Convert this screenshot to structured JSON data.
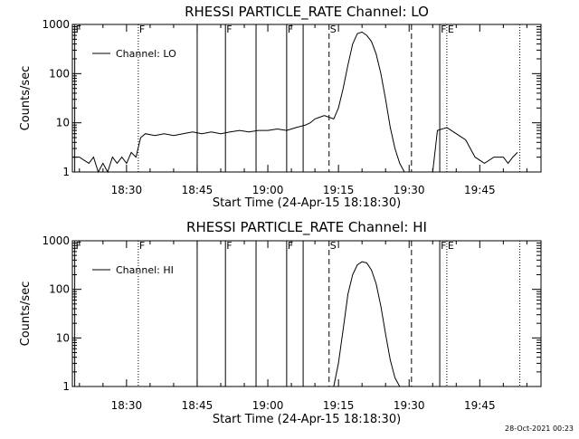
{
  "footer": "28-Oct-2021 00:23",
  "chart_data": [
    {
      "type": "line",
      "title": "RHESSI PARTICLE_RATE Channel: LO",
      "xlabel": "Start Time (24-Apr-15 18:18:30)",
      "ylabel": "Counts/sec",
      "y_scale": "log",
      "ylim": [
        1,
        1000
      ],
      "y_ticks": [
        1,
        10,
        100,
        1000
      ],
      "y_tick_labels": [
        "1",
        "10",
        "100",
        "1000"
      ],
      "xlim": [
        "18:18:30",
        "19:58:00"
      ],
      "x_ticks": [
        "18:30",
        "18:45",
        "19:00",
        "19:15",
        "19:30",
        "19:45"
      ],
      "legend": {
        "position": "top-left",
        "entries": [
          "Channel: LO"
        ]
      },
      "series": [
        {
          "name": "Channel: LO",
          "x": [
            "18:18:30",
            "18:20:00",
            "18:22:00",
            "18:23:00",
            "18:24:00",
            "18:25:00",
            "18:26:00",
            "18:27:00",
            "18:28:00",
            "18:29:00",
            "18:30:00",
            "18:31:00",
            "18:32:00",
            "18:33:00",
            "18:34:00",
            "18:36:00",
            "18:38:00",
            "18:40:00",
            "18:42:00",
            "18:44:00",
            "18:46:00",
            "18:48:00",
            "18:50:00",
            "18:52:00",
            "18:54:00",
            "18:56:00",
            "18:58:00",
            "19:00:00",
            "19:02:00",
            "19:04:00",
            "19:06:00",
            "19:08:00",
            "19:09:00",
            "19:10:00",
            "19:11:00",
            "19:12:00",
            "19:13:00",
            "19:14:00",
            "19:15:00",
            "19:16:00",
            "19:17:00",
            "19:18:00",
            "19:19:00",
            "19:20:00",
            "19:21:00",
            "19:22:00",
            "19:23:00",
            "19:24:00",
            "19:25:00",
            "19:26:00",
            "19:27:00",
            "19:28:00",
            "19:29:00",
            "19:30:00",
            "19:31:00",
            "19:32:00",
            "19:33:00",
            "19:35:00",
            "19:36:00",
            "19:38:00",
            "19:40:00",
            "19:42:00",
            "19:44:00",
            "19:46:00",
            "19:48:00",
            "19:50:00",
            "19:51:00",
            "19:52:00",
            "19:53:00"
          ],
          "y": [
            2,
            2,
            1.5,
            2,
            1,
            1.5,
            1,
            2,
            1.5,
            2,
            1.5,
            2.5,
            2,
            5,
            6,
            5.5,
            6,
            5.5,
            6,
            6.5,
            6,
            6.5,
            6,
            6.5,
            7,
            6.5,
            7,
            7,
            7.5,
            7,
            8,
            9,
            10,
            12,
            13,
            14,
            13,
            12,
            20,
            50,
            150,
            400,
            650,
            700,
            600,
            450,
            250,
            100,
            30,
            8,
            3,
            1.5,
            1,
            1,
            1,
            1,
            1,
            1,
            7,
            8,
            6,
            4.5,
            2,
            1.5,
            2,
            2,
            1.5,
            2,
            2.5
          ]
        }
      ],
      "annotations": [
        {
          "x": "18:19:00",
          "style": "solid",
          "label": "F"
        },
        {
          "x": "18:32:30",
          "style": "dotted",
          "label": ""
        },
        {
          "x": "18:32:30",
          "style": "none",
          "label": "F"
        },
        {
          "x": "18:45:00",
          "style": "solid",
          "label": ""
        },
        {
          "x": "18:51:00",
          "style": "solid",
          "label": "F"
        },
        {
          "x": "18:57:30",
          "style": "solid",
          "label": ""
        },
        {
          "x": "19:04:00",
          "style": "solid",
          "label": "F"
        },
        {
          "x": "19:07:30",
          "style": "solid",
          "label": ""
        },
        {
          "x": "19:13:00",
          "style": "dashed",
          "label": "S"
        },
        {
          "x": "19:30:30",
          "style": "dashed",
          "label": ""
        },
        {
          "x": "19:36:30",
          "style": "solid",
          "label": "F"
        },
        {
          "x": "19:38:00",
          "style": "dotted",
          "label": "E"
        },
        {
          "x": "19:53:30",
          "style": "dotted",
          "label": ""
        }
      ]
    },
    {
      "type": "line",
      "title": "RHESSI PARTICLE_RATE Channel: HI",
      "xlabel": "Start Time (24-Apr-15 18:18:30)",
      "ylabel": "Counts/sec",
      "y_scale": "log",
      "ylim": [
        1,
        1000
      ],
      "y_ticks": [
        1,
        10,
        100,
        1000
      ],
      "y_tick_labels": [
        "1",
        "10",
        "100",
        "1000"
      ],
      "xlim": [
        "18:18:30",
        "19:58:00"
      ],
      "x_ticks": [
        "18:30",
        "18:45",
        "19:00",
        "19:15",
        "19:30",
        "19:45"
      ],
      "legend": {
        "position": "top-left",
        "entries": [
          "Channel: HI"
        ]
      },
      "series": [
        {
          "name": "Channel: HI",
          "x": [
            "19:14:00",
            "19:15:00",
            "19:16:00",
            "19:17:00",
            "19:18:00",
            "19:19:00",
            "19:20:00",
            "19:21:00",
            "19:22:00",
            "19:23:00",
            "19:24:00",
            "19:25:00",
            "19:26:00",
            "19:27:00",
            "19:28:00"
          ],
          "y": [
            1,
            3,
            15,
            80,
            200,
            320,
            370,
            350,
            250,
            130,
            45,
            12,
            3.5,
            1.5,
            1
          ]
        }
      ],
      "annotations": [
        {
          "x": "18:19:00",
          "style": "solid",
          "label": "F"
        },
        {
          "x": "18:32:30",
          "style": "dotted",
          "label": ""
        },
        {
          "x": "18:32:30",
          "style": "none",
          "label": "F"
        },
        {
          "x": "18:45:00",
          "style": "solid",
          "label": ""
        },
        {
          "x": "18:51:00",
          "style": "solid",
          "label": "F"
        },
        {
          "x": "18:57:30",
          "style": "solid",
          "label": ""
        },
        {
          "x": "19:04:00",
          "style": "solid",
          "label": "F"
        },
        {
          "x": "19:07:30",
          "style": "solid",
          "label": ""
        },
        {
          "x": "19:13:00",
          "style": "dashed",
          "label": "S"
        },
        {
          "x": "19:30:30",
          "style": "dashed",
          "label": ""
        },
        {
          "x": "19:36:30",
          "style": "solid",
          "label": "F"
        },
        {
          "x": "19:38:00",
          "style": "dotted",
          "label": "E"
        },
        {
          "x": "19:53:30",
          "style": "dotted",
          "label": ""
        }
      ]
    }
  ]
}
